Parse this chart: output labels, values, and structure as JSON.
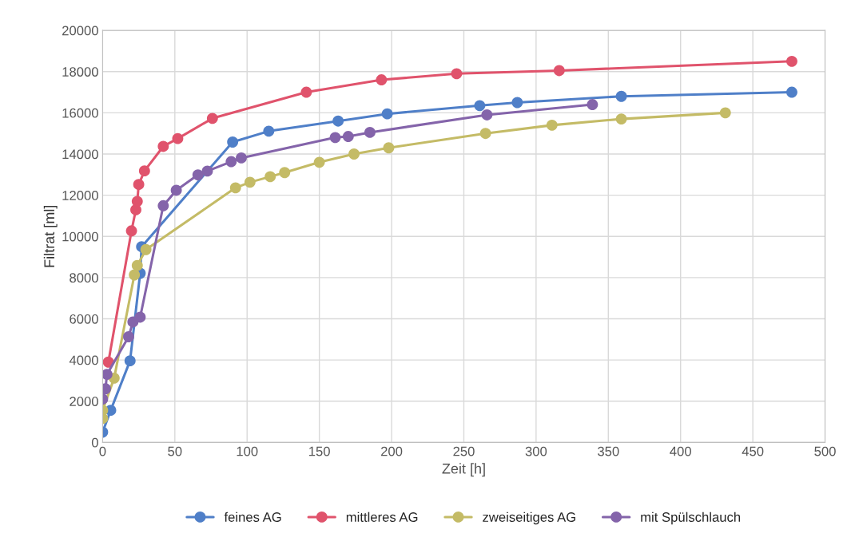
{
  "chart_data": {
    "type": "line",
    "xlabel": "Zeit [h]",
    "ylabel": "Filtrat [ml]",
    "xlim": [
      0,
      500
    ],
    "xticks": [
      0,
      50,
      100,
      150,
      200,
      250,
      300,
      350,
      400,
      450,
      500
    ],
    "ylim": [
      0,
      20000
    ],
    "yticks": [
      0,
      2000,
      4000,
      6000,
      8000,
      10000,
      12000,
      14000,
      16000,
      18000,
      20000
    ],
    "grid": true,
    "legend": "bottom",
    "marker": "circle",
    "line_style": "solid",
    "series": [
      {
        "name": "feines AG",
        "color": "#4f7fc8",
        "x": [
          0,
          5.6,
          19,
          26,
          27,
          90,
          115,
          163,
          197,
          261,
          287,
          359,
          477
        ],
        "values": [
          500,
          1560,
          3960,
          8210,
          9500,
          14580,
          15110,
          15600,
          15950,
          16350,
          16500,
          16800,
          17000
        ]
      },
      {
        "name": "mittleres AG",
        "color": "#e0536c",
        "x": [
          4,
          20,
          23,
          24,
          25,
          29,
          42,
          52,
          76,
          141,
          193,
          245,
          316,
          477
        ],
        "values": [
          3900,
          10270,
          11290,
          11700,
          12520,
          13180,
          14370,
          14750,
          15730,
          17000,
          17600,
          17900,
          18050,
          18500
        ]
      },
      {
        "name": "zweiseitiges AG",
        "color": "#c4bb66",
        "x": [
          0,
          0,
          8,
          22,
          24,
          30,
          92,
          102,
          116,
          126,
          150,
          174,
          198,
          265,
          311,
          359,
          431
        ],
        "values": [
          1160,
          1560,
          3120,
          8130,
          8590,
          9360,
          12360,
          12630,
          12900,
          13100,
          13600,
          14000,
          14300,
          15000,
          15400,
          15700,
          16000
        ]
      },
      {
        "name": "mit Spülschlauch",
        "color": "#8464aa",
        "x": [
          0,
          2,
          3,
          18,
          21,
          26,
          42,
          51,
          66,
          72.5,
          89,
          96,
          161,
          170,
          185,
          266,
          339
        ],
        "values": [
          2100,
          2600,
          3300,
          5130,
          5850,
          6080,
          11490,
          12240,
          12990,
          13170,
          13630,
          13810,
          14800,
          14850,
          15050,
          15900,
          16400
        ]
      }
    ]
  }
}
